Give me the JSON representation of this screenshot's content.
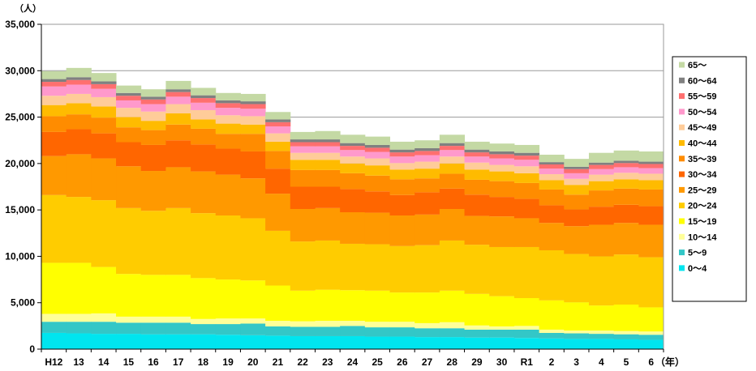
{
  "chart_data": {
    "type": "bar",
    "stacked": true,
    "y_unit_label": "（人）",
    "x_unit_label": "（年）",
    "ylim": [
      0,
      35000
    ],
    "yticks": [
      0,
      5000,
      10000,
      15000,
      20000,
      25000,
      30000,
      35000
    ],
    "ytick_labels": [
      "0",
      "5,000",
      "10,000",
      "15,000",
      "20,000",
      "25,000",
      "30,000",
      "35,000"
    ],
    "grid": "horizontal",
    "legend_position": "right",
    "categories": [
      "H12",
      "13",
      "14",
      "15",
      "16",
      "17",
      "18",
      "19",
      "20",
      "21",
      "22",
      "23",
      "24",
      "25",
      "26",
      "27",
      "28",
      "29",
      "30",
      "R1",
      "2",
      "3",
      "4",
      "5",
      "6"
    ],
    "series": [
      {
        "name": "0～4",
        "color": "#00e5ef",
        "values": [
          1750,
          1700,
          1650,
          1650,
          1600,
          1600,
          1600,
          1550,
          1500,
          1450,
          1400,
          1400,
          1400,
          1350,
          1350,
          1300,
          1300,
          1250,
          1250,
          1200,
          1150,
          1100,
          1100,
          1050,
          1000
        ]
      },
      {
        "name": "5～9",
        "color": "#33c7c7",
        "values": [
          1200,
          1250,
          1300,
          1200,
          1250,
          1250,
          1100,
          1150,
          1250,
          1000,
          1000,
          1000,
          1100,
          1000,
          1000,
          950,
          950,
          850,
          850,
          900,
          600,
          600,
          550,
          550,
          550
        ]
      },
      {
        "name": "10～14",
        "color": "#ffff99",
        "values": [
          850,
          850,
          900,
          650,
          650,
          650,
          550,
          600,
          550,
          600,
          600,
          650,
          550,
          600,
          600,
          550,
          650,
          450,
          350,
          400,
          350,
          300,
          350,
          350,
          350
        ]
      },
      {
        "name": "15～19",
        "color": "#ffff00",
        "values": [
          5500,
          5500,
          5000,
          4600,
          4500,
          4500,
          4400,
          4200,
          4100,
          3800,
          3300,
          3350,
          3300,
          3350,
          3150,
          3300,
          3400,
          3400,
          3250,
          3000,
          3150,
          3050,
          2700,
          2850,
          2600
        ]
      },
      {
        "name": "20～24",
        "color": "#ffcc00",
        "values": [
          7300,
          7100,
          7200,
          7100,
          6900,
          7200,
          7000,
          6900,
          6700,
          5900,
          5300,
          5300,
          5000,
          5000,
          5000,
          5100,
          5400,
          5300,
          5300,
          5500,
          5400,
          5200,
          5300,
          5400,
          5400
        ]
      },
      {
        "name": "25～29",
        "color": "#ff9900",
        "values": [
          4200,
          4600,
          4500,
          4500,
          4300,
          4400,
          4500,
          4400,
          4300,
          4000,
          3500,
          3500,
          3400,
          3400,
          3300,
          3300,
          3400,
          3100,
          3300,
          3100,
          2950,
          3000,
          3400,
          3400,
          3500
        ]
      },
      {
        "name": "30～34",
        "color": "#ff6600",
        "values": [
          2600,
          2700,
          2700,
          2600,
          2800,
          2900,
          2900,
          2800,
          2900,
          2700,
          2400,
          2300,
          2500,
          2300,
          2200,
          2400,
          2200,
          2300,
          2100,
          2100,
          1900,
          1800,
          1950,
          1950,
          2000
        ]
      },
      {
        "name": "35～39",
        "color": "#ff8c00",
        "values": [
          1700,
          1600,
          1700,
          1600,
          1600,
          1700,
          1700,
          1600,
          1900,
          1900,
          1800,
          1800,
          1700,
          1700,
          1700,
          1500,
          1600,
          1600,
          1700,
          1700,
          1700,
          1600,
          1750,
          1750,
          1800
        ]
      },
      {
        "name": "40～44",
        "color": "#ffbb00",
        "values": [
          1200,
          1200,
          1200,
          1100,
          1000,
          1200,
          1000,
          1100,
          1000,
          1000,
          1100,
          1100,
          1050,
          1100,
          1050,
          1050,
          1100,
          1100,
          1050,
          1050,
          1000,
          1050,
          1000,
          1000,
          1000
        ]
      },
      {
        "name": "45～49",
        "color": "#ffcc99",
        "values": [
          1000,
          1000,
          1000,
          1000,
          1000,
          1000,
          1000,
          900,
          900,
          900,
          750,
          750,
          750,
          750,
          700,
          750,
          750,
          750,
          700,
          750,
          650,
          650,
          700,
          700,
          700
        ]
      },
      {
        "name": "50～54",
        "color": "#ff99cc",
        "values": [
          1000,
          1000,
          900,
          800,
          800,
          800,
          800,
          800,
          800,
          750,
          700,
          700,
          700,
          700,
          700,
          700,
          700,
          650,
          700,
          700,
          600,
          600,
          600,
          600,
          600
        ]
      },
      {
        "name": "55～59",
        "color": "#ff6f6f",
        "values": [
          500,
          500,
          500,
          500,
          500,
          500,
          500,
          500,
          500,
          450,
          450,
          450,
          450,
          450,
          450,
          450,
          450,
          450,
          450,
          450,
          450,
          450,
          450,
          450,
          450
        ]
      },
      {
        "name": "60～64",
        "color": "#808080",
        "values": [
          300,
          300,
          300,
          300,
          300,
          300,
          300,
          300,
          300,
          300,
          300,
          300,
          300,
          300,
          300,
          300,
          300,
          300,
          300,
          300,
          250,
          250,
          250,
          250,
          250
        ]
      },
      {
        "name": "65～",
        "color": "#c4d9a4",
        "values": [
          850,
          1000,
          900,
          800,
          800,
          900,
          800,
          800,
          800,
          800,
          800,
          900,
          900,
          900,
          850,
          850,
          900,
          850,
          850,
          850,
          800,
          850,
          1050,
          1100,
          1100
        ]
      }
    ]
  }
}
